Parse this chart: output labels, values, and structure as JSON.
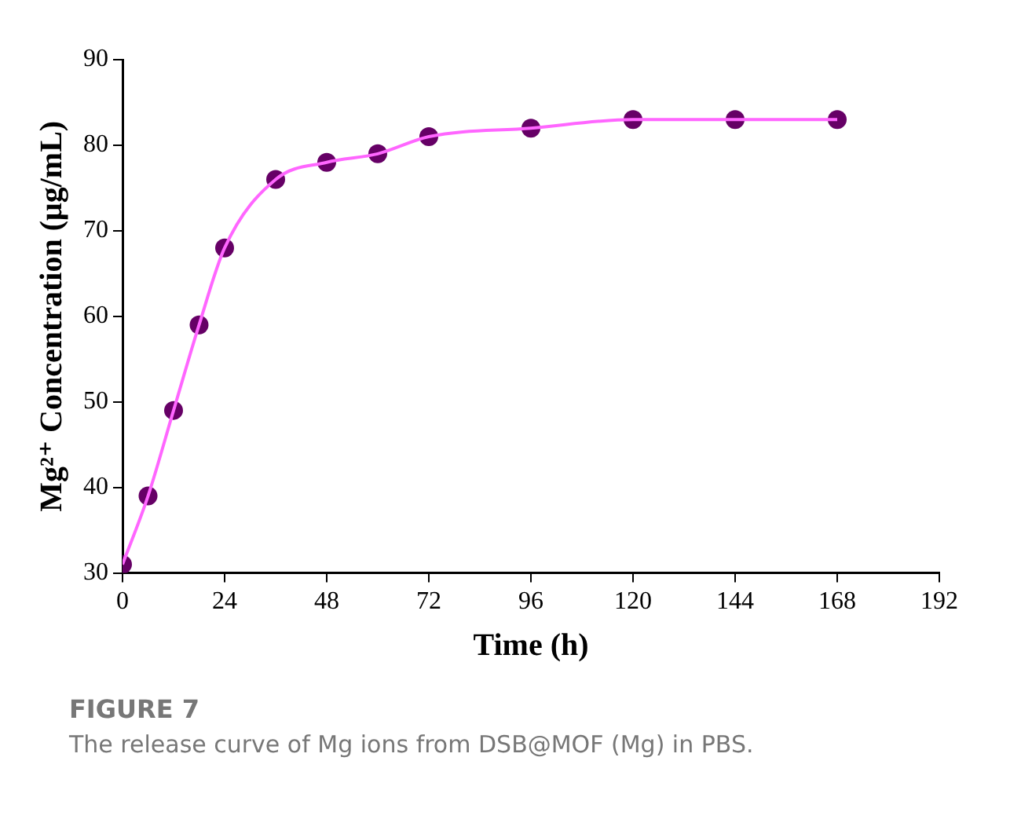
{
  "chart_data": {
    "type": "line",
    "title": "FIGURE 7",
    "subtitle": "The release curve of Mg ions from DSB@MOF (Mg) in PBS.",
    "xlabel": "Time (h)",
    "ylabel": "Mg²⁺ Concentration (μg/mL)",
    "x": [
      0,
      6,
      12,
      18,
      24,
      36,
      48,
      60,
      72,
      96,
      120,
      144,
      168
    ],
    "series": [
      {
        "marker": "none",
        "color": "#ff66ff",
        "values": [
          31,
          39,
          49,
          59,
          68,
          76,
          78,
          79,
          81,
          82,
          83,
          83,
          83
        ]
      },
      {
        "type": "scatter",
        "marker": "circle",
        "color": "#660066",
        "values": [
          31,
          39,
          49,
          59,
          68,
          76,
          78,
          79,
          81,
          82,
          83,
          83,
          83
        ]
      }
    ],
    "xlim": [
      0,
      192
    ],
    "xticks": [
      0,
      24,
      48,
      72,
      96,
      120,
      144,
      168,
      192
    ],
    "ylim": [
      30,
      90
    ],
    "yticks": [
      30,
      40,
      50,
      60,
      70,
      80,
      90
    ],
    "grid": false,
    "legend": false
  }
}
